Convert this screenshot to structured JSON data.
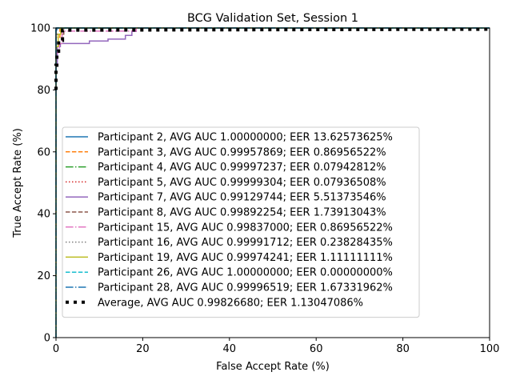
{
  "chart_data": {
    "type": "line",
    "title": "BCG Validation Set, Session 1",
    "xlabel": "False Accept Rate (%)",
    "ylabel": "True Accept Rate (%)",
    "xlim": [
      0,
      100
    ],
    "ylim": [
      0,
      100
    ],
    "xticks": [
      "0",
      "20",
      "40",
      "60",
      "80",
      "100"
    ],
    "yticks": [
      "0",
      "20",
      "40",
      "60",
      "80",
      "100"
    ],
    "grid": false,
    "legend_position": "lower-left",
    "series": [
      {
        "name": "Participant 2, AVG AUC 1.00000000; EER 13.62573625%",
        "color": "#1f77b4",
        "dash": "solid",
        "x": [
          0,
          0,
          100
        ],
        "y": [
          0,
          100,
          100
        ]
      },
      {
        "name": "Participant 3, AVG AUC 0.99957869; EER 0.86956522%",
        "color": "#ff7f0e",
        "dash": "dashed",
        "x": [
          0,
          0,
          0.9,
          0.9,
          100
        ],
        "y": [
          0,
          97,
          97,
          100,
          100
        ]
      },
      {
        "name": "Participant 4, AVG AUC 0.99997237; EER 0.07942812%",
        "color": "#2ca02c",
        "dash": "dashdot",
        "x": [
          0,
          0,
          0.1,
          0.1,
          100
        ],
        "y": [
          0,
          99.6,
          99.6,
          100,
          100
        ]
      },
      {
        "name": "Participant 5, AVG AUC 0.99999304; EER 0.07936508%",
        "color": "#d62728",
        "dash": "dotted",
        "x": [
          0,
          0,
          0.1,
          0.1,
          100
        ],
        "y": [
          0,
          99.8,
          99.8,
          100,
          100
        ]
      },
      {
        "name": "Participant 7, AVG AUC 0.99129744; EER 5.51373546%",
        "color": "#9467bd",
        "dash": "solid",
        "x": [
          0,
          0,
          0.3,
          0.3,
          1,
          1,
          7.7,
          7.7,
          12,
          12,
          16,
          16,
          17.5,
          17.5,
          18.5,
          18.5,
          100
        ],
        "y": [
          75,
          88,
          88,
          94,
          94,
          95,
          95,
          95.8,
          95.8,
          96.4,
          96.4,
          97.6,
          97.6,
          98.9,
          98.9,
          100,
          100
        ]
      },
      {
        "name": "Participant 8, AVG AUC 0.99892254; EER 1.73913043%",
        "color": "#8c564b",
        "dash": "dashed",
        "x": [
          0,
          0,
          1.8,
          1.8,
          100
        ],
        "y": [
          0,
          98,
          98,
          100,
          100
        ]
      },
      {
        "name": "Participant 15, AVG AUC 0.99837000; EER 0.86956522%",
        "color": "#e377c2",
        "dash": "dashdot",
        "x": [
          0,
          0,
          0.8,
          0.8,
          1.4,
          1.4,
          18.5,
          18.5,
          100
        ],
        "y": [
          0,
          92,
          92,
          95,
          95,
          99,
          99,
          100,
          100
        ]
      },
      {
        "name": "Participant 16, AVG AUC 0.99991712; EER 0.23828435%",
        "color": "#7f7f7f",
        "dash": "dotted",
        "x": [
          0,
          0,
          0.3,
          0.3,
          100
        ],
        "y": [
          0,
          99.5,
          99.5,
          100,
          100
        ]
      },
      {
        "name": "Participant 19, AVG AUC 0.99974241; EER 1.11111111%",
        "color": "#bcbd22",
        "dash": "solid",
        "x": [
          0,
          0,
          0.5,
          0.5,
          1.1,
          1.1,
          100
        ],
        "y": [
          0,
          94,
          94,
          98,
          98,
          100,
          100
        ]
      },
      {
        "name": "Participant 26, AVG AUC 1.00000000; EER 0.00000000%",
        "color": "#17becf",
        "dash": "dashed",
        "x": [
          0,
          0,
          100
        ],
        "y": [
          0,
          100,
          100
        ]
      },
      {
        "name": "Participant 28, AVG AUC 0.99996519; EER 1.67331962%",
        "color": "#1f77b4",
        "dash": "dashdot",
        "x": [
          0,
          0,
          0.2,
          0.2,
          100
        ],
        "y": [
          0,
          99.4,
          99.4,
          100,
          100
        ]
      },
      {
        "name": "Average, AVG AUC 0.99826680; EER 1.13047086%",
        "color": "#000000",
        "dash": "thickdotted",
        "x": [
          0,
          0,
          0.2,
          0.2,
          0.6,
          0.6,
          1.5,
          1.5,
          100
        ],
        "y": [
          80,
          88,
          88,
          92.5,
          92.5,
          96,
          96,
          99.3,
          99.6
        ]
      }
    ]
  }
}
